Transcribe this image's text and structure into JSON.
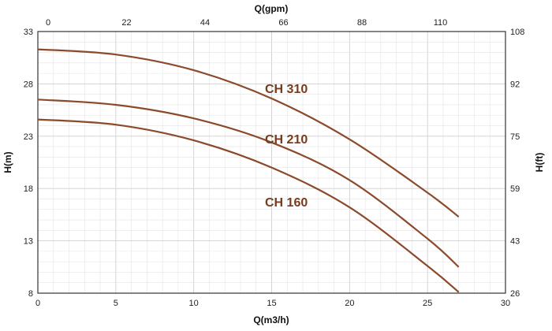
{
  "chart_data": {
    "type": "line",
    "xlabel": "Q(m3/h)",
    "x2label": "Q(gpm)",
    "ylabel": "H(m)",
    "y2label": "H(ft)",
    "xlim": [
      0,
      30
    ],
    "ylim": [
      8,
      33
    ],
    "x_ticks": [
      "0",
      "5",
      "10",
      "15",
      "20",
      "25",
      "30"
    ],
    "y_ticks": [
      "8",
      "13",
      "18",
      "23",
      "28",
      "33"
    ],
    "x2_ticks": [
      "0",
      "22",
      "44",
      "66",
      "88",
      "110"
    ],
    "y2_ticks": [
      "26",
      "43",
      "59",
      "75",
      "92",
      "108"
    ],
    "grid": true,
    "curve_color": "#8b4a2b",
    "label_color": "#7a3a1c",
    "series": [
      {
        "name": "CH 310",
        "x": [
          0,
          5,
          10,
          15,
          20,
          25,
          27
        ],
        "y": [
          31.3,
          30.8,
          29.3,
          26.6,
          22.7,
          17.6,
          15.3
        ]
      },
      {
        "name": "CH 210",
        "x": [
          0,
          5,
          10,
          15,
          20,
          25,
          27
        ],
        "y": [
          26.5,
          26.0,
          24.7,
          22.4,
          18.8,
          13.2,
          10.5
        ]
      },
      {
        "name": "CH 160",
        "x": [
          0,
          5,
          10,
          15,
          20,
          25,
          27
        ],
        "y": [
          24.6,
          24.1,
          22.6,
          20.0,
          16.2,
          10.6,
          8.1
        ]
      }
    ]
  }
}
